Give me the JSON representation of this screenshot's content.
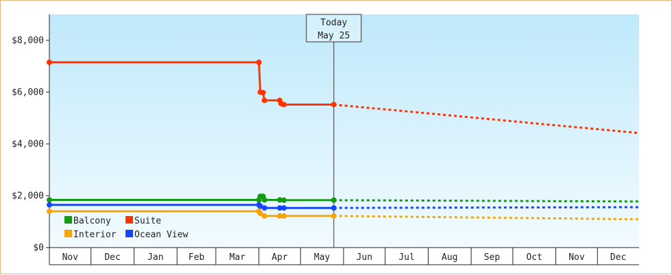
{
  "chart_data": {
    "type": "line",
    "title": "",
    "xlabel": "",
    "ylabel": "",
    "x_ticks": [
      "Nov",
      "Dec",
      "Jan",
      "Feb",
      "Mar",
      "Apr",
      "May",
      "Jun",
      "Jul",
      "Aug",
      "Sep",
      "Oct",
      "Nov",
      "Dec"
    ],
    "xlim": [
      "2024-11-01",
      "2025-12-31"
    ],
    "ylim": [
      0,
      9000
    ],
    "y_ticks": [
      0,
      2000,
      4000,
      6000,
      8000
    ],
    "y_tick_labels": [
      "$0",
      "$2,000",
      "$4,000",
      "$6,000",
      "$8,000"
    ],
    "today": {
      "line1": "Today",
      "line2": "May 25",
      "date": "2025-05-25"
    },
    "grid": false,
    "background_gradient": [
      "#bfe9fb",
      "#f2fbff"
    ],
    "legend_position": "bottom-left",
    "series": [
      {
        "name": "Balcony",
        "color": "#169916",
        "points": [
          [
            "2024-11-01",
            1840
          ],
          [
            "2025-04-01",
            1840
          ],
          [
            "2025-04-02",
            1980
          ],
          [
            "2025-04-04",
            1980
          ],
          [
            "2025-04-05",
            1840
          ],
          [
            "2025-04-16",
            1840
          ],
          [
            "2025-04-19",
            1830
          ],
          [
            "2025-05-25",
            1830
          ]
        ],
        "forecast": [
          [
            "2025-05-25",
            1830
          ],
          [
            "2025-12-31",
            1780
          ]
        ]
      },
      {
        "name": "Suite",
        "color": "#ff3300",
        "points": [
          [
            "2024-11-01",
            7150
          ],
          [
            "2025-04-01",
            7150
          ],
          [
            "2025-04-02",
            6000
          ],
          [
            "2025-04-04",
            5980
          ],
          [
            "2025-04-05",
            5680
          ],
          [
            "2025-04-16",
            5680
          ],
          [
            "2025-04-17",
            5560
          ],
          [
            "2025-04-19",
            5520
          ],
          [
            "2025-05-25",
            5520
          ]
        ],
        "forecast": [
          [
            "2025-05-25",
            5520
          ],
          [
            "2025-12-31",
            4420
          ]
        ]
      },
      {
        "name": "Interior",
        "color": "#f2a50c",
        "points": [
          [
            "2024-11-01",
            1400
          ],
          [
            "2025-04-01",
            1400
          ],
          [
            "2025-04-02",
            1320
          ],
          [
            "2025-04-05",
            1220
          ],
          [
            "2025-04-16",
            1220
          ],
          [
            "2025-04-19",
            1220
          ],
          [
            "2025-05-25",
            1220
          ]
        ],
        "forecast": [
          [
            "2025-05-25",
            1220
          ],
          [
            "2025-08-01",
            1180
          ],
          [
            "2025-12-31",
            1090
          ]
        ]
      },
      {
        "name": "Ocean View",
        "color": "#1446ff",
        "points": [
          [
            "2024-11-01",
            1650
          ],
          [
            "2025-04-01",
            1650
          ],
          [
            "2025-04-02",
            1600
          ],
          [
            "2025-04-05",
            1530
          ],
          [
            "2025-04-16",
            1530
          ],
          [
            "2025-04-19",
            1530
          ],
          [
            "2025-05-25",
            1530
          ]
        ],
        "forecast": [
          [
            "2025-05-25",
            1530
          ],
          [
            "2025-12-31",
            1560
          ]
        ]
      }
    ]
  }
}
